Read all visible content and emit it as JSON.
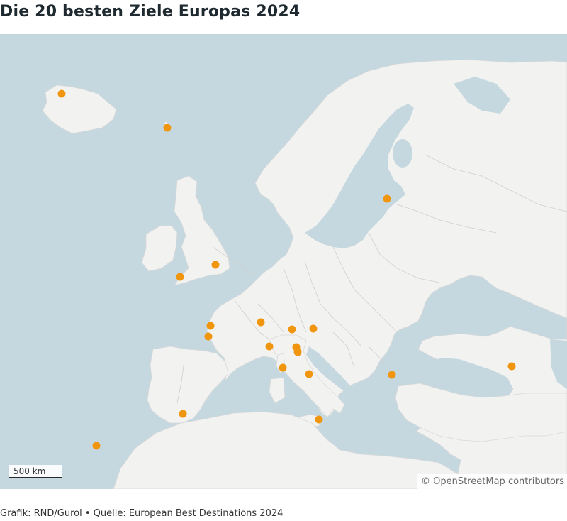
{
  "title": "Die 20 besten Ziele Europas 2024",
  "map": {
    "scale_label": "500 km",
    "attribution": "© OpenStreetMap contributors",
    "markers": [
      {
        "name": "reykjavik-marker"
      },
      {
        "name": "faroe-marker"
      },
      {
        "name": "vilnius-marker"
      },
      {
        "name": "london-marker"
      },
      {
        "name": "cornwall-marker"
      },
      {
        "name": "la-rochelle-marker"
      },
      {
        "name": "bordeaux-marker"
      },
      {
        "name": "annecy-marker"
      },
      {
        "name": "verona-marker"
      },
      {
        "name": "trieste-marker"
      },
      {
        "name": "cinque-terre-marker"
      },
      {
        "name": "florence-marker"
      },
      {
        "name": "siena-marker"
      },
      {
        "name": "corsica-marker"
      },
      {
        "name": "naples-marker"
      },
      {
        "name": "sofia-marker"
      },
      {
        "name": "batumi-marker"
      },
      {
        "name": "gibraltar-marker"
      },
      {
        "name": "malta-marker"
      },
      {
        "name": "madeira-marker"
      }
    ],
    "colors": {
      "water": "#c6d8df",
      "land": "#f2f2f1",
      "marker": "#f0960e"
    }
  },
  "footer": "Grafik: RND/Gurol • Quelle: European Best Destinations 2024"
}
